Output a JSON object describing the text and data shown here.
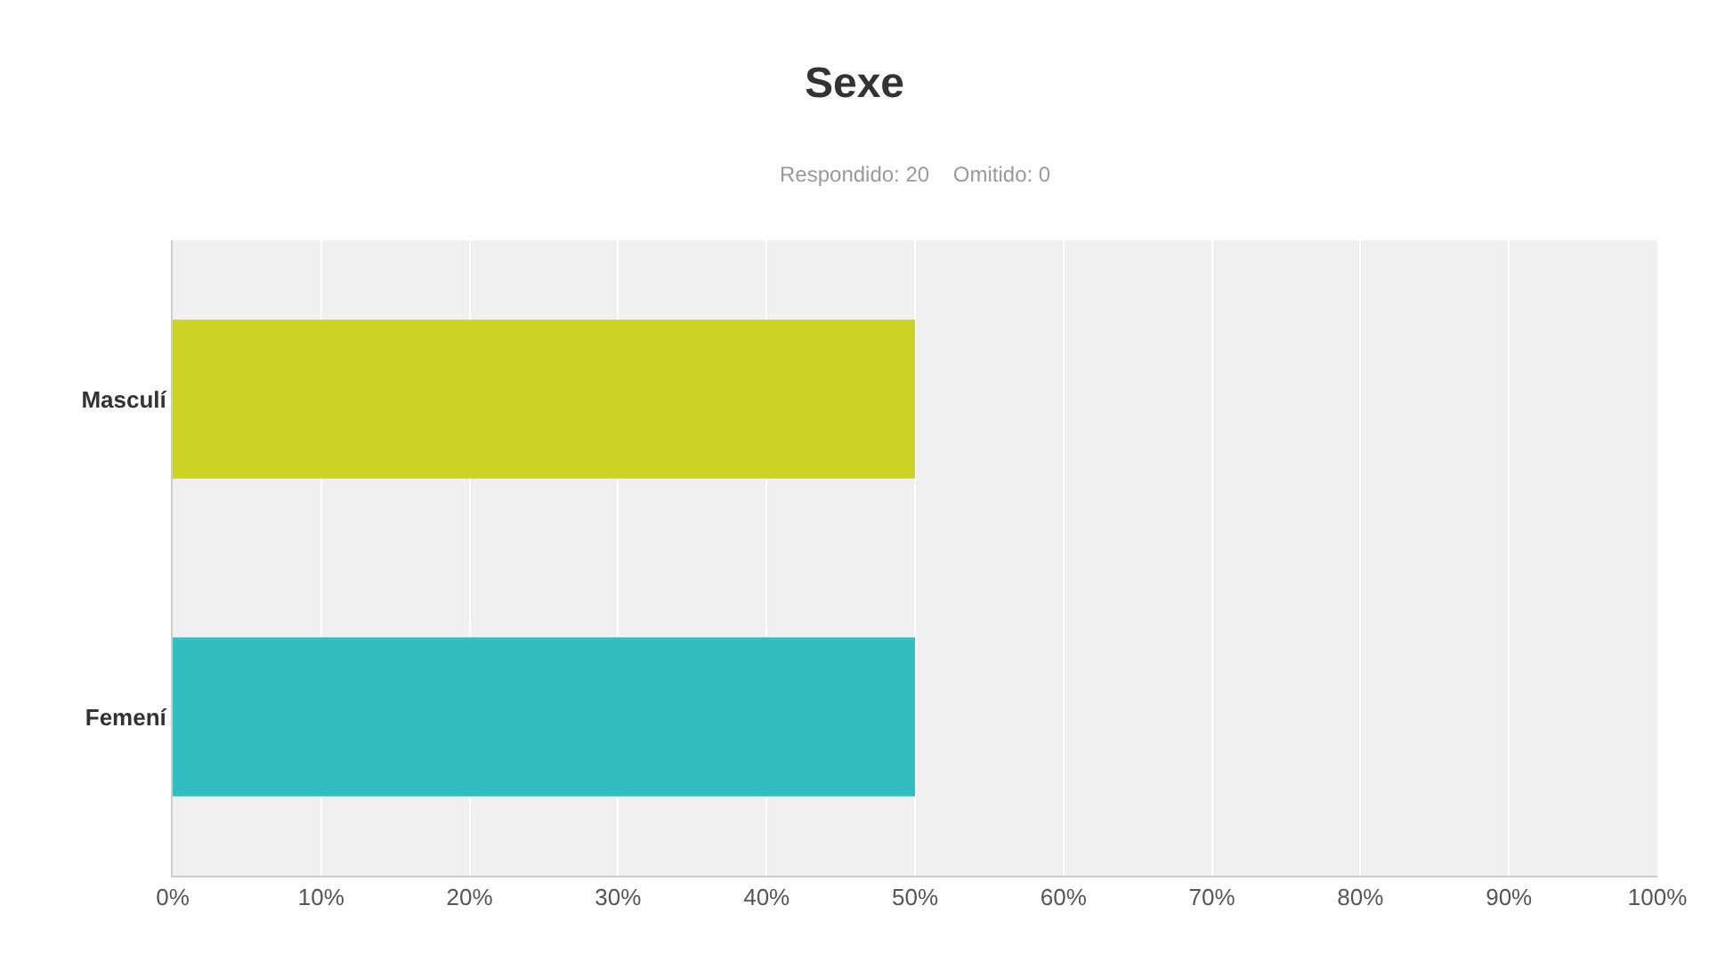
{
  "chart_data": {
    "type": "bar",
    "orientation": "horizontal",
    "title": "Sexe",
    "subtitle": "Respondido: 20    Omitido: 0",
    "categories": [
      "Masculí",
      "Femení"
    ],
    "values": [
      50,
      50
    ],
    "colors": [
      "#cdd325",
      "#32bec1"
    ],
    "xlim": [
      0,
      100
    ],
    "xticks": [
      {
        "value": 0,
        "label": "0%"
      },
      {
        "value": 10,
        "label": "10%"
      },
      {
        "value": 20,
        "label": "20%"
      },
      {
        "value": 30,
        "label": "30%"
      },
      {
        "value": 40,
        "label": "40%"
      },
      {
        "value": 50,
        "label": "50%"
      },
      {
        "value": 60,
        "label": "60%"
      },
      {
        "value": 70,
        "label": "70%"
      },
      {
        "value": 80,
        "label": "80%"
      },
      {
        "value": 90,
        "label": "90%"
      },
      {
        "value": 100,
        "label": "100%"
      }
    ],
    "grid": "x"
  }
}
